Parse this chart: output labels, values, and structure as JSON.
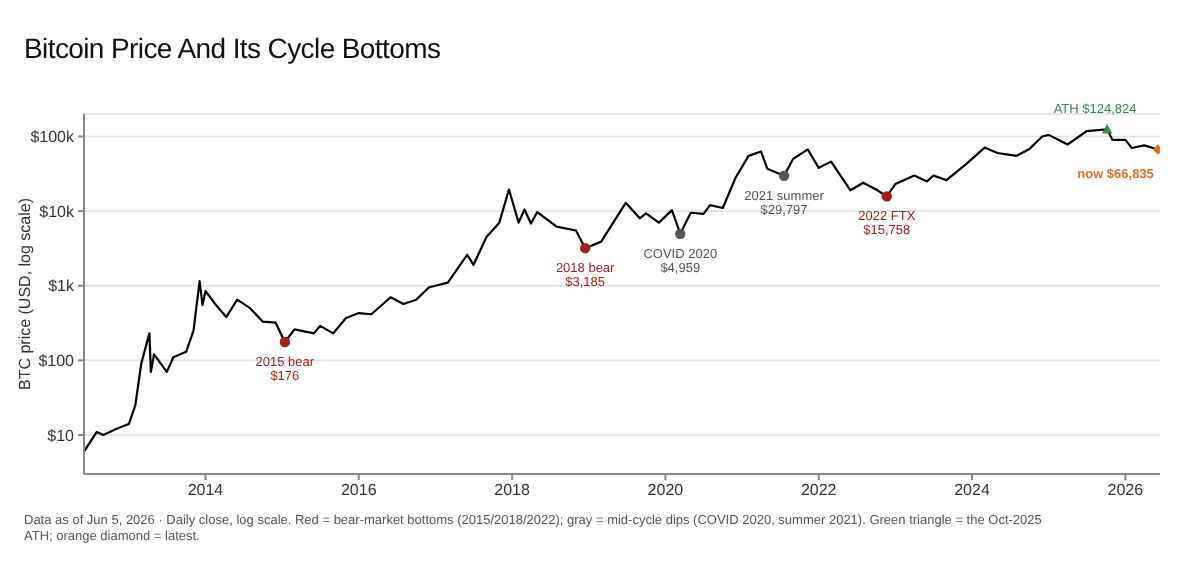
{
  "chart_data": {
    "type": "line",
    "title": "Bitcoin Price And Its Cycle Bottoms",
    "ylabel": "BTC price (USD, log scale)",
    "log": true,
    "grid": "y",
    "xlim": [
      "2012-06",
      "2026-06-15"
    ],
    "xticks": [
      {
        "value": "2014",
        "label": "2014"
      },
      {
        "value": "2016",
        "label": "2016"
      },
      {
        "value": "2018",
        "label": "2018"
      },
      {
        "value": "2020",
        "label": "2020"
      },
      {
        "value": "2022",
        "label": "2022"
      },
      {
        "value": "2024",
        "label": "2024"
      },
      {
        "value": "2026",
        "label": "2026"
      }
    ],
    "ylim": [
      3,
      200000
    ],
    "yticks": [
      {
        "value": 10,
        "label": "$10"
      },
      {
        "value": 100,
        "label": "$100"
      },
      {
        "value": 1000,
        "label": "$1k"
      },
      {
        "value": 10000,
        "label": "$10k"
      },
      {
        "value": 100000,
        "label": "$100k"
      }
    ],
    "series": [
      {
        "color": "#000000",
        "marker": "none",
        "x": [
          "2012-06",
          "2012-08",
          "2012-09",
          "2012-11",
          "2013-01",
          "2013-02",
          "2013-03",
          "2013-04-09",
          "2013-04-16",
          "2013-05",
          "2013-07",
          "2013-08",
          "2013-10",
          "2013-11-05",
          "2013-12-04",
          "2013-12-18",
          "2014-01",
          "2014-02-25",
          "2014-04-10",
          "2014-06",
          "2014-08",
          "2014-10",
          "2014-12",
          "2015-01-14",
          "2015-03",
          "2015-06",
          "2015-07",
          "2015-09",
          "2015-11",
          "2016-01",
          "2016-03",
          "2016-06",
          "2016-08",
          "2016-10",
          "2016-12",
          "2017-01",
          "2017-03",
          "2017-06",
          "2017-07",
          "2017-09",
          "2017-11",
          "2017-12-17",
          "2018-02",
          "2018-03",
          "2018-04",
          "2018-05",
          "2018-08",
          "2018-11",
          "2018-12-15",
          "2019-03",
          "2019-06-26",
          "2019-09",
          "2019-10",
          "2019-12",
          "2020-02",
          "2020-03-12",
          "2020-05",
          "2020-07",
          "2020-08",
          "2020-10",
          "2020-12",
          "2021-02",
          "2021-04",
          "2021-05",
          "2021-07-20",
          "2021-09",
          "2021-11-10",
          "2022-01",
          "2022-03",
          "2022-06",
          "2022-08",
          "2022-10",
          "2022-11-21",
          "2023-01",
          "2023-04",
          "2023-06",
          "2023-07",
          "2023-09",
          "2023-12",
          "2024-03",
          "2024-05",
          "2024-08",
          "2024-10",
          "2024-12",
          "2025-01",
          "2025-04",
          "2025-07",
          "2025-10-06",
          "2025-11",
          "2026-01",
          "2026-02",
          "2026-04",
          "2026-06-05"
        ],
        "values": [
          6,
          11,
          10,
          12,
          14,
          25,
          90,
          230,
          70,
          120,
          70,
          110,
          130,
          250,
          1150,
          550,
          850,
          530,
          380,
          650,
          500,
          330,
          320,
          176,
          260,
          230,
          290,
          230,
          370,
          430,
          415,
          700,
          570,
          650,
          950,
          1000,
          1100,
          2600,
          1900,
          4500,
          7000,
          19500,
          7000,
          10500,
          6800,
          9700,
          6200,
          5500,
          3185,
          3900,
          12900,
          8000,
          9300,
          7000,
          10300,
          4959,
          9500,
          9200,
          12000,
          11000,
          28000,
          55000,
          63000,
          37000,
          29797,
          50000,
          67000,
          38000,
          46000,
          19000,
          24000,
          19500,
          15758,
          23000,
          30000,
          25000,
          30000,
          26000,
          42000,
          71000,
          60000,
          55000,
          68000,
          100000,
          105000,
          78000,
          118000,
          124824,
          90000,
          90000,
          70000,
          76000,
          66835
        ]
      },
      {
        "type": "scatter",
        "color": "#a31f1f",
        "marker": "circle",
        "x": [
          "2015-01-14",
          "2018-12-15",
          "2022-11-21"
        ],
        "values": [
          176,
          3185,
          15758
        ]
      },
      {
        "type": "scatter",
        "color": "#555555",
        "marker": "circle",
        "x": [
          "2020-03-12",
          "2021-07-20"
        ],
        "values": [
          4959,
          29797
        ]
      },
      {
        "type": "scatter",
        "color": "#2e8b57",
        "marker": "triangle",
        "x": [
          "2025-10-06"
        ],
        "values": [
          124824
        ]
      },
      {
        "type": "scatter",
        "color": "#e07020",
        "marker": "diamond",
        "x": [
          "2026-06-05"
        ],
        "values": [
          66835
        ]
      }
    ],
    "annotations": [
      {
        "text": "2015 bear\n$176",
        "x": "2015-01-14",
        "y": 176
      },
      {
        "text": "2018 bear\n$3,185",
        "x": "2018-12-15",
        "y": 3185
      },
      {
        "text": "COVID 2020\n$4,959",
        "x": "2020-03-12",
        "y": 4959
      },
      {
        "text": "2021 summer\n$29,797",
        "x": "2021-07-20",
        "y": 29797
      },
      {
        "text": "2022 FTX\n$15,758",
        "x": "2022-11-21",
        "y": 15758
      },
      {
        "text": "ATH $124,824",
        "x": "2025-10-06",
        "y": 124824
      },
      {
        "text": "now $66,835",
        "x": "2026-06-05",
        "y": 66835
      },
      "Data as of Jun 5, 2026 · Daily close, log scale. Red = bear-market bottoms (2015/2018/2022); gray = mid-cycle dips (COVID 2020, summer 2021). Green triangle = the Oct-2025 ATH; orange diamond = latest."
    ]
  }
}
